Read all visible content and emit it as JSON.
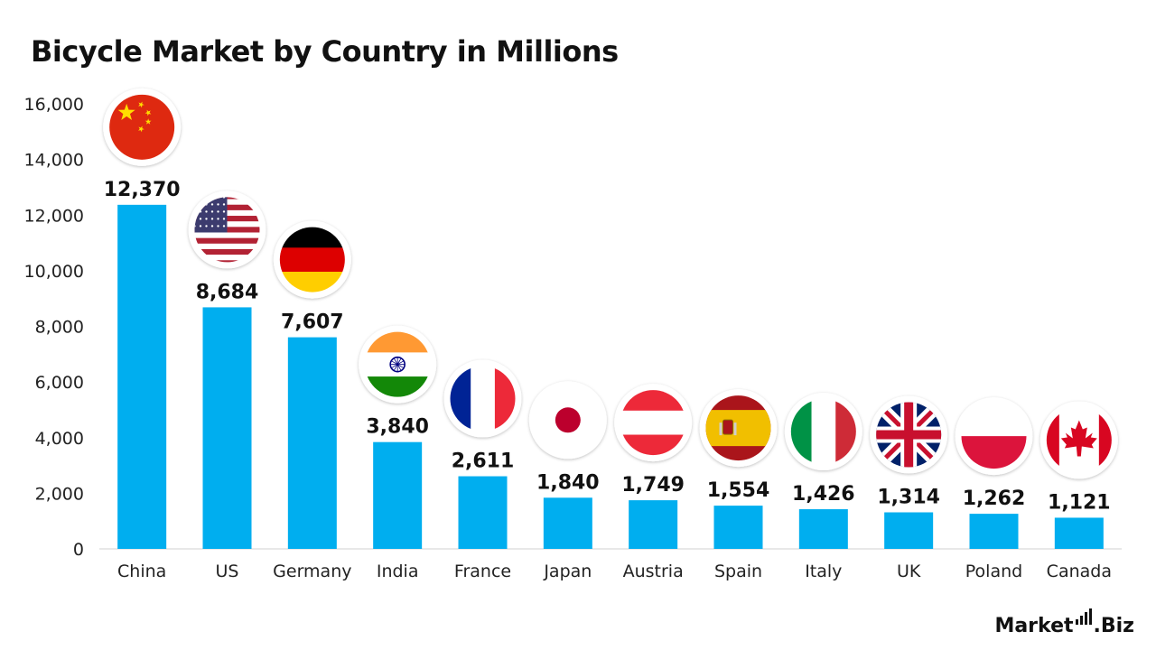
{
  "title": "Bicycle Market by Country in Millions",
  "brand": {
    "left": "Market",
    "right": ".Biz"
  },
  "chart_data": {
    "type": "bar",
    "title": "Bicycle Market by Country in Millions",
    "xlabel": "",
    "ylabel": "",
    "ylim": [
      0,
      16000
    ],
    "yticks": [
      0,
      2000,
      4000,
      6000,
      8000,
      10000,
      12000,
      14000,
      16000
    ],
    "ytick_labels": [
      "0",
      "2,000",
      "4,000",
      "6,000",
      "8,000",
      "10,000",
      "12,000",
      "14,000",
      "16,000"
    ],
    "grid": false,
    "categories": [
      "China",
      "US",
      "Germany",
      "India",
      "France",
      "Japan",
      "Austria",
      "Spain",
      "Italy",
      "UK",
      "Poland",
      "Canada"
    ],
    "values": [
      12370,
      8684,
      7607,
      3840,
      2611,
      1840,
      1749,
      1554,
      1426,
      1314,
      1262,
      1121
    ],
    "value_labels": [
      "12,370",
      "8,684",
      "7,607",
      "3,840",
      "2,611",
      "1,840",
      "1,749",
      "1,554",
      "1,426",
      "1,314",
      "1,262",
      "1,121"
    ],
    "flags": [
      "china-flag-icon",
      "us-flag-icon",
      "germany-flag-icon",
      "india-flag-icon",
      "france-flag-icon",
      "japan-flag-icon",
      "austria-flag-icon",
      "spain-flag-icon",
      "italy-flag-icon",
      "uk-flag-icon",
      "poland-flag-icon",
      "canada-flag-icon"
    ],
    "bar_color": "#00AEEF"
  }
}
